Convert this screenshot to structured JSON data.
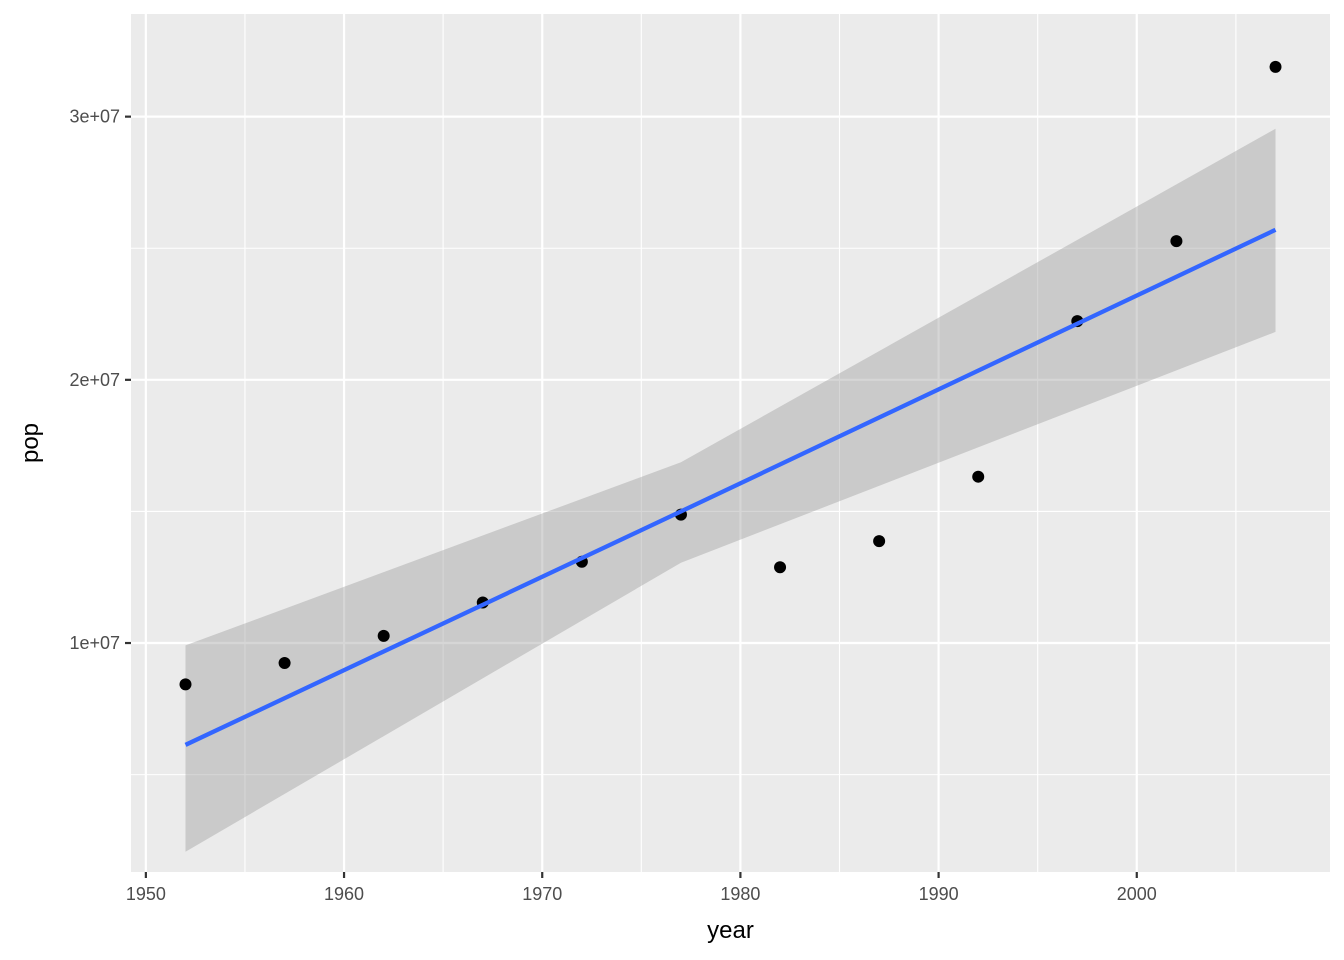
{
  "chart_data": {
    "type": "scatter",
    "title": "",
    "xlabel": "year",
    "ylabel": "pop",
    "xlim": [
      1949.25,
      2009.75
    ],
    "ylim": [
      1300000,
      33900000
    ],
    "x_ticks": [
      1950,
      1960,
      1970,
      1980,
      1990,
      2000
    ],
    "x_minor_ticks": [
      1955,
      1965,
      1975,
      1985,
      1995,
      2005
    ],
    "y_ticks": [
      10000000,
      20000000,
      30000000
    ],
    "y_tick_labels": [
      "1e+07",
      "2e+07",
      "3e+07"
    ],
    "y_minor_ticks": [
      5000000,
      15000000,
      25000000
    ],
    "grid": true,
    "legend": "none",
    "series": [
      {
        "type": "points",
        "x": [
          1952,
          1957,
          1962,
          1967,
          1972,
          1977,
          1982,
          1987,
          1992,
          1997,
          2002,
          2007
        ],
        "y": [
          8430000,
          9240000,
          10270000,
          11540000,
          13090000,
          14880000,
          12880000,
          13870000,
          16320000,
          22230000,
          25270000,
          31890000
        ]
      }
    ],
    "smooth": {
      "method": "lm",
      "x": [
        1952,
        1977,
        2007
      ],
      "fit": [
        6130000,
        15000000,
        25700000
      ],
      "band_lower": [
        2070000,
        13050000,
        21820000
      ],
      "band_upper": [
        9910000,
        16870000,
        29540000
      ]
    },
    "colors": {
      "panel": "#ebebeb",
      "grid": "#ffffff",
      "points": "#000000",
      "line": "#3366ff",
      "band": "#999999"
    }
  }
}
